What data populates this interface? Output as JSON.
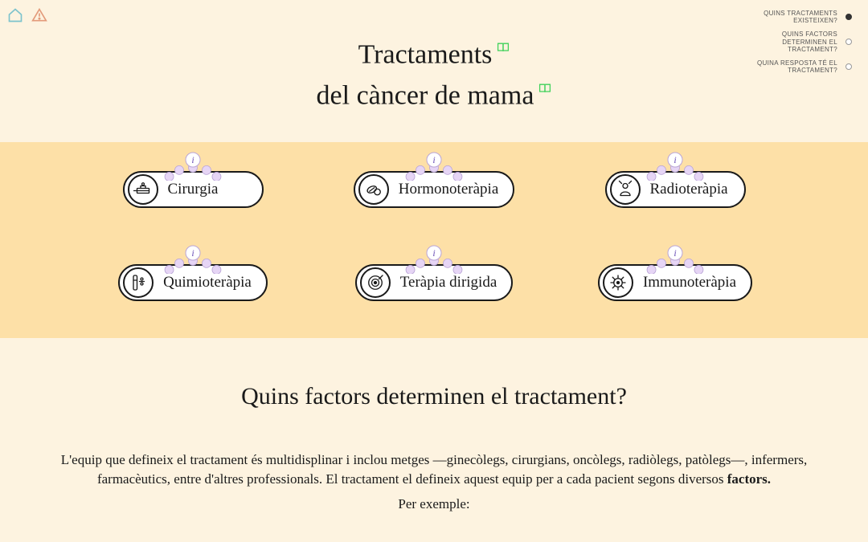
{
  "colors": {
    "page_bg": "#fdf3e0",
    "band_bg": "#fde0a7",
    "ink": "#1a1a1a",
    "nav_text": "#555555",
    "bookmark": "#3fd15a",
    "orbit_fill": "#e6d5f5",
    "orbit_center_fill": "#ffffff",
    "orbit_i": "#6a4fb6",
    "home_icon": "#7dc3cc",
    "alert_icon": "#e39a7a"
  },
  "title_line1": "Tractaments",
  "title_line2": "del càncer de mama",
  "nav": [
    {
      "label": "QUINS TRACTAMENTS EXISTEIXEN?",
      "active": true
    },
    {
      "label": "QUINS FACTORS DETERMINEN EL TRACTAMENT?",
      "active": false
    },
    {
      "label": "QUINA RESPOSTA TÉ EL TRACTAMENT?",
      "active": false
    }
  ],
  "treatments": [
    {
      "label": "Cirurgia",
      "icon": "surgery"
    },
    {
      "label": "Hormonoteràpia",
      "icon": "pills"
    },
    {
      "label": "Radioteràpia",
      "icon": "radio"
    },
    {
      "label": "Quimioteràpia",
      "icon": "chemo"
    },
    {
      "label": "Teràpia dirigida",
      "icon": "target"
    },
    {
      "label": "Immunoteràpia",
      "icon": "immuno"
    }
  ],
  "section2": {
    "heading": "Quins factors determinen el tractament?",
    "para1": "L'equip que defineix el tractament és multidisplinar i inclou metges —ginecòlegs, cirurgians, oncòlegs, radiòlegs, patòlegs—, infermers, farmacèutics, entre d'altres professionals. El tractament el defineix aquest equip per a cada pacient segons diversos ",
    "para1_bold": "factors.",
    "para2": "Per exemple:"
  }
}
